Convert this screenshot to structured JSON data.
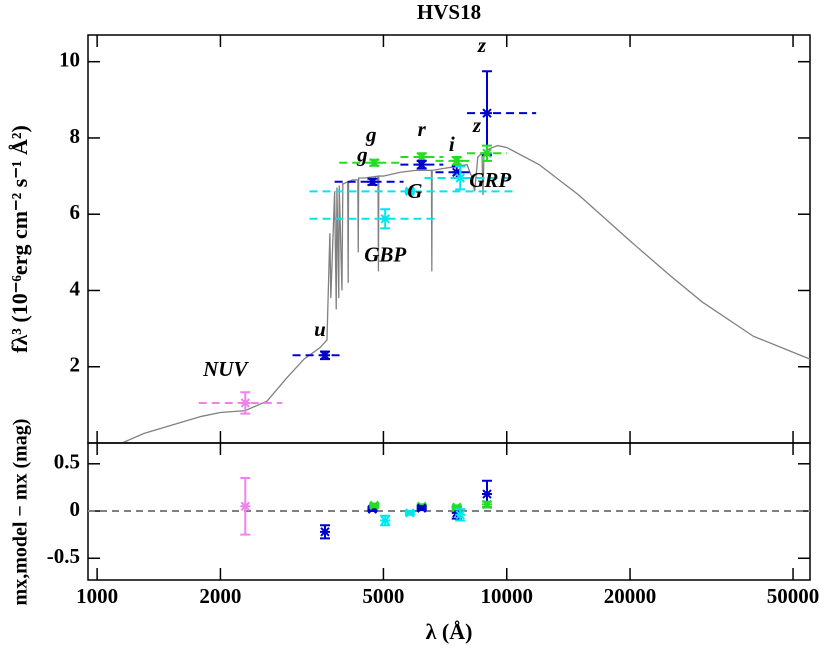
{
  "chart_data": [
    {
      "type": "sed",
      "title": "HVS18",
      "ylabel": "fλ³ (10⁻⁶erg cm⁻² s⁻¹ Å²)",
      "xscale": "log",
      "xlim": [
        950,
        55000
      ],
      "xticks": [
        1000,
        2000,
        5000,
        10000,
        20000,
        50000
      ],
      "ylim": [
        0,
        10.7
      ],
      "yticks": [
        2,
        4,
        6,
        8,
        10
      ],
      "series": [
        {
          "color": "#808080",
          "x": [
            1150,
            1300,
            1500,
            1800,
            2000,
            2300,
            2600,
            2900,
            3200,
            3500,
            3640,
            3700,
            3720,
            3800,
            3835,
            3850,
            3890,
            3900,
            3960,
            3980,
            4000,
            4090,
            4101,
            4110,
            4200,
            4330,
            4340,
            4350,
            4500,
            4850,
            4861,
            4872,
            5000,
            5500,
            6000,
            6500,
            6550,
            6563,
            6575,
            7000,
            7500,
            8000,
            8200,
            8350,
            8500,
            8700,
            8750,
            8800,
            9000,
            9500,
            10000,
            12000,
            15000,
            20000,
            25000,
            30000,
            40000,
            55000
          ],
          "values": [
            0.0,
            0.25,
            0.45,
            0.7,
            0.8,
            0.85,
            1.1,
            1.7,
            2.2,
            2.5,
            2.7,
            5.5,
            3.8,
            6.6,
            3.5,
            6.7,
            3.8,
            6.75,
            4.0,
            6.8,
            6.8,
            6.85,
            4.2,
            6.85,
            6.9,
            6.9,
            5.0,
            6.95,
            6.95,
            7.0,
            4.5,
            7.0,
            7.0,
            7.1,
            7.15,
            7.15,
            7.15,
            4.5,
            7.15,
            7.2,
            7.25,
            7.3,
            7.0,
            6.6,
            7.5,
            7.6,
            6.5,
            7.6,
            7.7,
            7.8,
            7.75,
            7.3,
            6.5,
            5.3,
            4.4,
            3.7,
            2.8,
            2.2
          ]
        },
        {
          "name": "NUV",
          "color": "#ee82ee",
          "x": [
            2300
          ],
          "values": [
            1.05
          ],
          "errors": [
            0.28
          ],
          "xlo": [
            1770
          ],
          "xhi": [
            2830
          ]
        },
        {
          "name": "u",
          "color": "#0000cd",
          "x": [
            3600
          ],
          "values": [
            2.3
          ],
          "errors": [
            0.1
          ],
          "xlo": [
            3000
          ],
          "xhi": [
            4000
          ]
        },
        {
          "name": "g",
          "color": "#0000cd",
          "x": [
            4700
          ],
          "values": [
            6.85
          ],
          "errors": [
            0.08
          ],
          "xlo": [
            3800
          ],
          "xhi": [
            5600
          ]
        },
        {
          "name": "g",
          "color": "#22dd22",
          "x": [
            4750
          ],
          "values": [
            7.35
          ],
          "errors": [
            0.08
          ],
          "xlo": [
            3900
          ],
          "xhi": [
            5600
          ]
        },
        {
          "name": "r",
          "color": "#22dd22",
          "x": [
            6200
          ],
          "values": [
            7.5
          ],
          "errors": [
            0.1
          ],
          "xlo": [
            5500
          ],
          "xhi": [
            7000
          ]
        },
        {
          "color": "#0000cd",
          "x": [
            6200
          ],
          "values": [
            7.3
          ],
          "errors": [
            0.1
          ],
          "xlo": [
            5500
          ],
          "xhi": [
            7000
          ]
        },
        {
          "name": "i",
          "color": "#0000cd",
          "x": [
            7550
          ],
          "values": [
            7.1
          ],
          "errors": [
            0.15
          ],
          "xlo": [
            6700
          ],
          "xhi": [
            8300
          ]
        },
        {
          "color": "#22dd22",
          "x": [
            7550
          ],
          "values": [
            7.4
          ],
          "errors": [
            0.1
          ],
          "xlo": [
            6700
          ],
          "xhi": [
            8300
          ]
        },
        {
          "name": "z",
          "color": "#0000cd",
          "x": [
            8950
          ],
          "values": [
            8.65
          ],
          "errors": [
            1.1
          ],
          "xlo": [
            8000
          ],
          "xhi": [
            11800
          ]
        },
        {
          "name": "z",
          "color": "#22dd22",
          "x": [
            8950
          ],
          "values": [
            7.6
          ],
          "errors": [
            0.2
          ],
          "xlo": [
            8000
          ],
          "xhi": [
            10000
          ]
        },
        {
          "name": "GBP",
          "color": "#00e5ee",
          "x": [
            5050
          ],
          "values": [
            5.88
          ],
          "errors": [
            0.25
          ],
          "xlo": [
            3300
          ],
          "xhi": [
            6700
          ]
        },
        {
          "name": "G",
          "color": "#00e5ee",
          "x": [
            5800
          ],
          "values": [
            6.6
          ],
          "errors": [
            0.05
          ],
          "xlo": [
            3300
          ],
          "xhi": [
            10500
          ]
        },
        {
          "name": "GRP",
          "color": "#00e5ee",
          "x": [
            7700
          ],
          "values": [
            6.95
          ],
          "errors": [
            0.3
          ],
          "xlo": [
            6300
          ],
          "xhi": [
            10500
          ]
        }
      ]
    },
    {
      "type": "residual",
      "ylabel": "mx,model − mx (mag)",
      "xlabel": "λ (Å)",
      "xscale": "log",
      "xlim": [
        950,
        55000
      ],
      "xticks": [
        1000,
        2000,
        5000,
        10000,
        20000,
        50000
      ],
      "ylim": [
        -0.73,
        0.72
      ],
      "yticks": [
        -0.5,
        0,
        0.5
      ],
      "series": [
        {
          "color": "#ee82ee",
          "x": [
            2300
          ],
          "values": [
            0.05
          ],
          "errors": [
            0.3
          ]
        },
        {
          "color": "#0000cd",
          "x": [
            3600
          ],
          "values": [
            -0.22
          ],
          "errors": [
            0.07
          ]
        },
        {
          "color": "#0000cd",
          "x": [
            4700
          ],
          "values": [
            0.02
          ],
          "errors": [
            0.02
          ]
        },
        {
          "color": "#22dd22",
          "x": [
            4750
          ],
          "values": [
            0.06
          ],
          "errors": [
            0.02
          ]
        },
        {
          "color": "#22dd22",
          "x": [
            6200
          ],
          "values": [
            0.05
          ],
          "errors": [
            0.02
          ]
        },
        {
          "color": "#0000cd",
          "x": [
            6200
          ],
          "values": [
            0.03
          ],
          "errors": [
            0.02
          ]
        },
        {
          "color": "#0000cd",
          "x": [
            7550
          ],
          "values": [
            -0.02
          ],
          "errors": [
            0.06
          ]
        },
        {
          "color": "#22dd22",
          "x": [
            7550
          ],
          "values": [
            0.04
          ],
          "errors": [
            0.02
          ]
        },
        {
          "color": "#0000cd",
          "x": [
            8950
          ],
          "values": [
            0.18
          ],
          "errors": [
            0.14
          ]
        },
        {
          "color": "#22dd22",
          "x": [
            8950
          ],
          "values": [
            0.07
          ],
          "errors": [
            0.03
          ]
        },
        {
          "color": "#00e5ee",
          "x": [
            5050
          ],
          "values": [
            -0.1
          ],
          "errors": [
            0.05
          ]
        },
        {
          "color": "#00e5ee",
          "x": [
            5800
          ],
          "values": [
            -0.02
          ],
          "errors": [
            0.02
          ]
        },
        {
          "color": "#00e5ee",
          "x": [
            7700
          ],
          "values": [
            -0.04
          ],
          "errors": [
            0.06
          ]
        }
      ]
    }
  ]
}
